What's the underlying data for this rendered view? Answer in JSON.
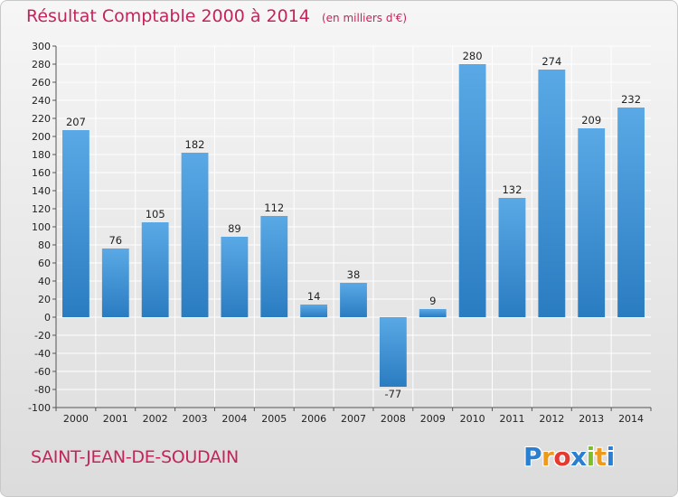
{
  "header": {
    "title": "Résultat Comptable 2000 à 2014",
    "subtitle": "(en milliers d'€)"
  },
  "footer": {
    "commune": "SAINT-JEAN-DE-SOUDAIN",
    "brand": "Proxiti",
    "brand_letters": [
      "P",
      "r",
      "o",
      "x",
      "i",
      "t",
      "i"
    ],
    "brand_colors": [
      "#2a7fd0",
      "#f09a1a",
      "#e43a2f",
      "#2a7fd0",
      "#7cbf2a",
      "#f09a1a",
      "#2a7fd0"
    ]
  },
  "colors": {
    "accent": "#c4245c",
    "bar_light": "#5aa9e6",
    "bar_dark": "#2a7cc1",
    "grid": "#ffffff"
  },
  "chart_data": {
    "type": "bar",
    "title": "Résultat Comptable 2000 à 2014",
    "subtitle": "(en milliers d'€)",
    "categories": [
      "2000",
      "2001",
      "2002",
      "2003",
      "2004",
      "2005",
      "2006",
      "2007",
      "2008",
      "2009",
      "2010",
      "2011",
      "2012",
      "2013",
      "2014"
    ],
    "values": [
      207,
      76,
      105,
      182,
      89,
      112,
      14,
      38,
      -77,
      9,
      280,
      132,
      274,
      209,
      232
    ],
    "ylim": [
      -100,
      300
    ],
    "ytick_step": 20,
    "grid": true,
    "legend": "none"
  }
}
